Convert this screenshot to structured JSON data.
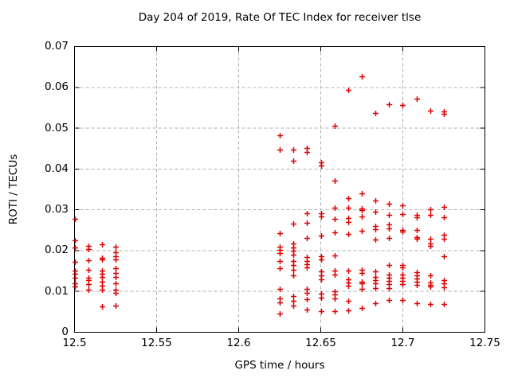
{
  "chart_data": {
    "type": "scatter",
    "title": "Day 204 of 2019, Rate Of TEC Index for receiver tlse",
    "xlabel": "GPS time / hours",
    "ylabel": "ROTI / TECUs",
    "xlim": [
      12.5,
      12.75
    ],
    "ylim": [
      0,
      0.07
    ],
    "xticks": [
      12.5,
      12.55,
      12.6,
      12.65,
      12.7,
      12.75
    ],
    "xtick_labels": [
      "12.5",
      "12.55",
      "12.6",
      "12.65",
      "12.7",
      "12.75"
    ],
    "yticks": [
      0,
      0.01,
      0.02,
      0.03,
      0.04,
      0.05,
      0.06,
      0.07
    ],
    "ytick_labels": [
      "0",
      "0.01",
      "0.02",
      "0.03",
      "0.04",
      "0.05",
      "0.06",
      "0.07"
    ],
    "grid": true,
    "legend": "none",
    "marker": "plus",
    "marker_color": "#dd0000",
    "grid_color": "#b0b0b0",
    "border_color": "#000000",
    "series": [
      {
        "name": "ROTI",
        "points": [
          [
            12.5,
            0.0278
          ],
          [
            12.5,
            0.0225
          ],
          [
            12.5,
            0.0207
          ],
          [
            12.5,
            0.0172
          ],
          [
            12.5,
            0.0151
          ],
          [
            12.5,
            0.0143
          ],
          [
            12.5,
            0.0133
          ],
          [
            12.5,
            0.0119
          ],
          [
            12.5,
            0.0112
          ],
          [
            12.5083,
            0.0212
          ],
          [
            12.5083,
            0.0203
          ],
          [
            12.5083,
            0.0176
          ],
          [
            12.5083,
            0.0154
          ],
          [
            12.5083,
            0.0134
          ],
          [
            12.5083,
            0.0127
          ],
          [
            12.5083,
            0.0118
          ],
          [
            12.5083,
            0.0104
          ],
          [
            12.5167,
            0.0216
          ],
          [
            12.5167,
            0.0182
          ],
          [
            12.5167,
            0.0179
          ],
          [
            12.5167,
            0.0152
          ],
          [
            12.5167,
            0.0144
          ],
          [
            12.5167,
            0.0135
          ],
          [
            12.5167,
            0.0123
          ],
          [
            12.5167,
            0.0115
          ],
          [
            12.5167,
            0.0104
          ],
          [
            12.5167,
            0.0063
          ],
          [
            12.525,
            0.021
          ],
          [
            12.525,
            0.0195
          ],
          [
            12.525,
            0.0187
          ],
          [
            12.525,
            0.0178
          ],
          [
            12.525,
            0.0156
          ],
          [
            12.525,
            0.0146
          ],
          [
            12.525,
            0.0136
          ],
          [
            12.525,
            0.0119
          ],
          [
            12.525,
            0.0104
          ],
          [
            12.525,
            0.0096
          ],
          [
            12.525,
            0.0065
          ],
          [
            12.625,
            0.0483
          ],
          [
            12.625,
            0.0447
          ],
          [
            12.625,
            0.0242
          ],
          [
            12.625,
            0.021
          ],
          [
            12.625,
            0.0202
          ],
          [
            12.625,
            0.0194
          ],
          [
            12.625,
            0.0174
          ],
          [
            12.625,
            0.0156
          ],
          [
            12.625,
            0.0106
          ],
          [
            12.625,
            0.0082
          ],
          [
            12.625,
            0.0074
          ],
          [
            12.625,
            0.0045
          ],
          [
            12.6333,
            0.0447
          ],
          [
            12.6333,
            0.0421
          ],
          [
            12.6333,
            0.0266
          ],
          [
            12.6333,
            0.0217
          ],
          [
            12.6333,
            0.0208
          ],
          [
            12.6333,
            0.02
          ],
          [
            12.6333,
            0.0191
          ],
          [
            12.6333,
            0.0174
          ],
          [
            12.6333,
            0.0164
          ],
          [
            12.6333,
            0.0154
          ],
          [
            12.6333,
            0.014
          ],
          [
            12.6333,
            0.0088
          ],
          [
            12.6333,
            0.0077
          ],
          [
            12.6333,
            0.0066
          ],
          [
            12.6417,
            0.0452
          ],
          [
            12.6417,
            0.0442
          ],
          [
            12.6417,
            0.0292
          ],
          [
            12.6417,
            0.0268
          ],
          [
            12.6417,
            0.0232
          ],
          [
            12.6417,
            0.0184
          ],
          [
            12.6417,
            0.0175
          ],
          [
            12.6417,
            0.0166
          ],
          [
            12.6417,
            0.0158
          ],
          [
            12.6417,
            0.0106
          ],
          [
            12.6417,
            0.0096
          ],
          [
            12.6417,
            0.008
          ],
          [
            12.6417,
            0.0056
          ],
          [
            12.65,
            0.0416
          ],
          [
            12.65,
            0.0408
          ],
          [
            12.65,
            0.0292
          ],
          [
            12.65,
            0.0284
          ],
          [
            12.65,
            0.0237
          ],
          [
            12.65,
            0.0187
          ],
          [
            12.65,
            0.0179
          ],
          [
            12.65,
            0.0149
          ],
          [
            12.65,
            0.014
          ],
          [
            12.65,
            0.013
          ],
          [
            12.65,
            0.0094
          ],
          [
            12.65,
            0.0084
          ],
          [
            12.65,
            0.0051
          ],
          [
            12.6583,
            0.0506
          ],
          [
            12.6583,
            0.0372
          ],
          [
            12.6583,
            0.0306
          ],
          [
            12.6583,
            0.0277
          ],
          [
            12.6583,
            0.0244
          ],
          [
            12.6583,
            0.0188
          ],
          [
            12.6583,
            0.0151
          ],
          [
            12.6583,
            0.0142
          ],
          [
            12.6583,
            0.0101
          ],
          [
            12.6583,
            0.0092
          ],
          [
            12.6583,
            0.0082
          ],
          [
            12.6583,
            0.0051
          ],
          [
            12.6667,
            0.0593
          ],
          [
            12.6667,
            0.0329
          ],
          [
            12.6667,
            0.0306
          ],
          [
            12.6667,
            0.0279
          ],
          [
            12.6667,
            0.027
          ],
          [
            12.6667,
            0.0241
          ],
          [
            12.6667,
            0.0151
          ],
          [
            12.6667,
            0.0129
          ],
          [
            12.6667,
            0.0121
          ],
          [
            12.6667,
            0.0114
          ],
          [
            12.6667,
            0.0077
          ],
          [
            12.6667,
            0.0053
          ],
          [
            12.675,
            0.0627
          ],
          [
            12.675,
            0.0341
          ],
          [
            12.675,
            0.0303
          ],
          [
            12.675,
            0.0299
          ],
          [
            12.675,
            0.0283
          ],
          [
            12.675,
            0.0248
          ],
          [
            12.675,
            0.0153
          ],
          [
            12.675,
            0.0145
          ],
          [
            12.675,
            0.0123
          ],
          [
            12.675,
            0.012
          ],
          [
            12.675,
            0.0106
          ],
          [
            12.675,
            0.006
          ],
          [
            12.6833,
            0.0537
          ],
          [
            12.6833,
            0.0322
          ],
          [
            12.6833,
            0.0296
          ],
          [
            12.6833,
            0.026
          ],
          [
            12.6833,
            0.0252
          ],
          [
            12.6833,
            0.0228
          ],
          [
            12.6833,
            0.0149
          ],
          [
            12.6833,
            0.0135
          ],
          [
            12.6833,
            0.0127
          ],
          [
            12.6833,
            0.0119
          ],
          [
            12.6833,
            0.0109
          ],
          [
            12.6833,
            0.0071
          ],
          [
            12.6917,
            0.0558
          ],
          [
            12.6917,
            0.0314
          ],
          [
            12.6917,
            0.0287
          ],
          [
            12.6917,
            0.0265
          ],
          [
            12.6917,
            0.0255
          ],
          [
            12.6917,
            0.0231
          ],
          [
            12.6917,
            0.0165
          ],
          [
            12.6917,
            0.0142
          ],
          [
            12.6917,
            0.0134
          ],
          [
            12.6917,
            0.0125
          ],
          [
            12.6917,
            0.0117
          ],
          [
            12.6917,
            0.0108
          ],
          [
            12.6917,
            0.0078
          ],
          [
            12.7,
            0.0557
          ],
          [
            12.7,
            0.0311
          ],
          [
            12.7,
            0.029
          ],
          [
            12.7,
            0.0251
          ],
          [
            12.7,
            0.0247
          ],
          [
            12.7,
            0.0165
          ],
          [
            12.7,
            0.0158
          ],
          [
            12.7,
            0.0142
          ],
          [
            12.7,
            0.0133
          ],
          [
            12.7,
            0.0125
          ],
          [
            12.7,
            0.0117
          ],
          [
            12.7,
            0.0078
          ],
          [
            12.7083,
            0.0573
          ],
          [
            12.7083,
            0.0288
          ],
          [
            12.7083,
            0.0282
          ],
          [
            12.7083,
            0.025
          ],
          [
            12.7083,
            0.0233
          ],
          [
            12.7083,
            0.0229
          ],
          [
            12.7083,
            0.0148
          ],
          [
            12.7083,
            0.014
          ],
          [
            12.7083,
            0.0132
          ],
          [
            12.7083,
            0.0124
          ],
          [
            12.7083,
            0.0116
          ],
          [
            12.7083,
            0.0071
          ],
          [
            12.7167,
            0.0544
          ],
          [
            12.7167,
            0.0301
          ],
          [
            12.7167,
            0.0288
          ],
          [
            12.7167,
            0.0229
          ],
          [
            12.7167,
            0.0218
          ],
          [
            12.7167,
            0.0211
          ],
          [
            12.7167,
            0.014
          ],
          [
            12.7167,
            0.0122
          ],
          [
            12.7167,
            0.0116
          ],
          [
            12.7167,
            0.0113
          ],
          [
            12.7167,
            0.0069
          ],
          [
            12.725,
            0.0541
          ],
          [
            12.725,
            0.0536
          ],
          [
            12.725,
            0.0308
          ],
          [
            12.725,
            0.0282
          ],
          [
            12.725,
            0.0239
          ],
          [
            12.725,
            0.023
          ],
          [
            12.725,
            0.0187
          ],
          [
            12.725,
            0.0127
          ],
          [
            12.725,
            0.0119
          ],
          [
            12.725,
            0.0111
          ],
          [
            12.725,
            0.0069
          ]
        ]
      }
    ]
  }
}
